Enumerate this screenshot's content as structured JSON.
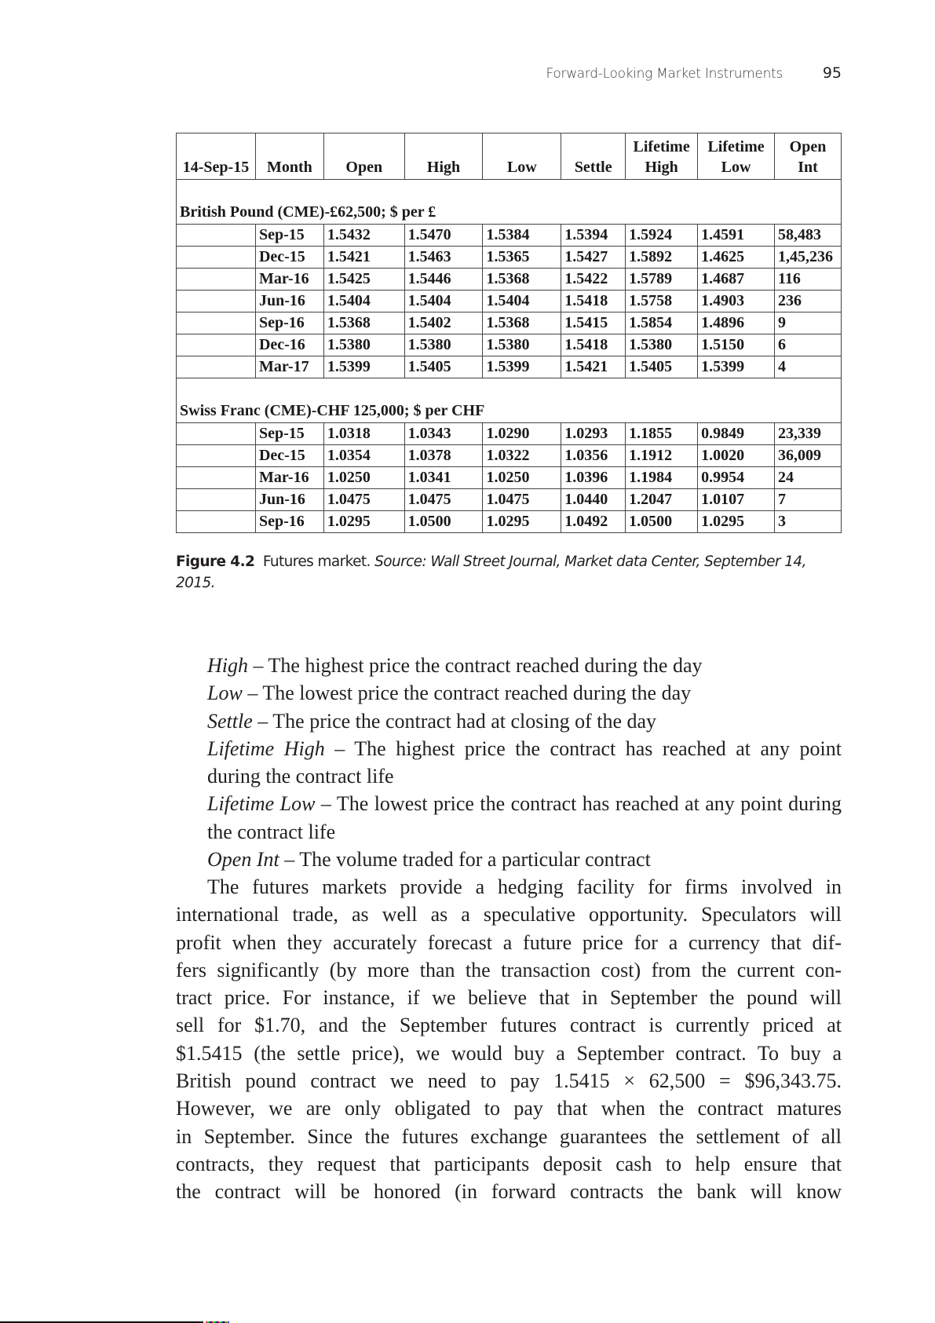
{
  "header": {
    "running_title": "Forward-Looking Market Instruments",
    "page_number": "95"
  },
  "table": {
    "columns": [
      "14-Sep-15",
      "Month",
      "Open",
      "High",
      "Low",
      "Settle",
      "Lifetime High",
      "Lifetime Low",
      "Open Int"
    ],
    "header_lines": [
      [
        "",
        "14-Sep-15"
      ],
      [
        "",
        "Month"
      ],
      [
        "",
        "Open"
      ],
      [
        "",
        "High"
      ],
      [
        "",
        "Low"
      ],
      [
        "",
        "Settle"
      ],
      [
        "Lifetime",
        "High"
      ],
      [
        "Lifetime",
        "Low"
      ],
      [
        "Open",
        "Int"
      ]
    ],
    "sections": [
      {
        "title": "British Pound (CME)-£62,500; $ per £",
        "rows": [
          [
            "Sep-15",
            "1.5432",
            "1.5470",
            "1.5384",
            "1.5394",
            "1.5924",
            "1.4591",
            "58,483"
          ],
          [
            "Dec-15",
            "1.5421",
            "1.5463",
            "1.5365",
            "1.5427",
            "1.5892",
            "1.4625",
            "1,45,236"
          ],
          [
            "Mar-16",
            "1.5425",
            "1.5446",
            "1.5368",
            "1.5422",
            "1.5789",
            "1.4687",
            "116"
          ],
          [
            "Jun-16",
            "1.5404",
            "1.5404",
            "1.5404",
            "1.5418",
            "1.5758",
            "1.4903",
            "236"
          ],
          [
            "Sep-16",
            "1.5368",
            "1.5402",
            "1.5368",
            "1.5415",
            "1.5854",
            "1.4896",
            "9"
          ],
          [
            "Dec-16",
            "1.5380",
            "1.5380",
            "1.5380",
            "1.5418",
            "1.5380",
            "1.5150",
            "6"
          ],
          [
            "Mar-17",
            "1.5399",
            "1.5405",
            "1.5399",
            "1.5421",
            "1.5405",
            "1.5399",
            "4"
          ]
        ]
      },
      {
        "title": "Swiss Franc (CME)-CHF 125,000; $ per CHF",
        "rows": [
          [
            "Sep-15",
            "1.0318",
            "1.0343",
            "1.0290",
            "1.0293",
            "1.1855",
            "0.9849",
            "23,339"
          ],
          [
            "Dec-15",
            "1.0354",
            "1.0378",
            "1.0322",
            "1.0356",
            "1.1912",
            "1.0020",
            "36,009"
          ],
          [
            "Mar-16",
            "1.0250",
            "1.0341",
            "1.0250",
            "1.0396",
            "1.1984",
            "0.9954",
            "24"
          ],
          [
            "Jun-16",
            "1.0475",
            "1.0475",
            "1.0475",
            "1.0440",
            "1.2047",
            "1.0107",
            "7"
          ],
          [
            "Sep-16",
            "1.0295",
            "1.0500",
            "1.0295",
            "1.0492",
            "1.0500",
            "1.0295",
            "3"
          ]
        ]
      }
    ]
  },
  "caption": {
    "label": "Figure 4.2",
    "text": "Futures market.",
    "source": "Source: Wall Street Journal, Market data Center, September 14, 2015."
  },
  "definitions": [
    {
      "term": "High",
      "text": "The highest price the contract reached during the day"
    },
    {
      "term": "Low",
      "text": "The lowest price the contract reached during the day"
    },
    {
      "term": "Settle",
      "text": "The price the contract had at closing of the day"
    },
    {
      "term": "Lifetime High",
      "text": "The highest price the contract has reached at any point during the contract life"
    },
    {
      "term": "Lifetime Low",
      "text": "The lowest price the contract has reached at any point during the contract life"
    },
    {
      "term": "Open Int",
      "text": "The volume traded for a particular contract"
    }
  ],
  "paragraph_lines": [
    "The futures markets provide a hedging facility for firms involved in",
    "international trade, as well as a speculative opportunity. Speculators will",
    "profit when they accurately forecast a future price for a currency that dif-",
    "fers significantly (by more than the transaction cost) from the current con-",
    "tract price. For instance, if we believe that in September the pound will",
    "sell for $1.70, and the September futures contract is currently priced at",
    "$1.5415 (the settle price), we would buy a September contract. To buy a",
    "British pound contract we need to pay 1.5415 × 62,500 = $96,343.75.",
    "However, we are only obligated to pay that when the contract matures",
    "in September. Since the futures exchange guarantees the settlement of all",
    "contracts, they request that participants deposit cash to help ensure that",
    "the contract will be honored (in forward contracts the bank will know"
  ]
}
